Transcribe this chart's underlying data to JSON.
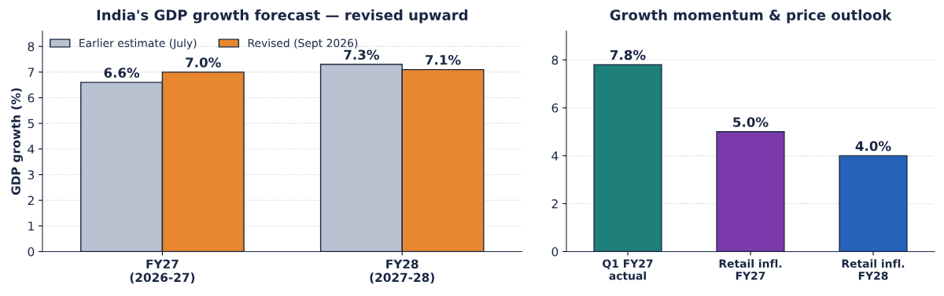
{
  "chart_data": [
    {
      "type": "bar",
      "title": "India's GDP growth forecast — revised upward",
      "ylabel": "GDP growth (%)",
      "categories": [
        "FY27\n(2026-27)",
        "FY28\n(2027-28)"
      ],
      "series": [
        {
          "name": "Earlier estimate (July)",
          "color": "#b8c2d0",
          "values": [
            6.6,
            7.3
          ],
          "value_labels": [
            "6.6%",
            "7.3%"
          ]
        },
        {
          "name": "Revised (Sept 2026)",
          "color": "#e8872e",
          "values": [
            7.0,
            7.1
          ],
          "value_labels": [
            "7.0%",
            "7.1%"
          ]
        }
      ],
      "ylim": [
        0,
        8.6
      ],
      "yticks": [
        0,
        1,
        2,
        3,
        4,
        5,
        6,
        7,
        8
      ],
      "grid": "y",
      "legend": "top left"
    },
    {
      "type": "bar",
      "title": "Growth momentum & price outlook",
      "categories": [
        "Q1 FY27\nactual",
        "Retail infl.\nFY27",
        "Retail infl.\nFY28"
      ],
      "values": [
        7.8,
        5.0,
        4.0
      ],
      "colors": [
        "#1f7f79",
        "#7b3aab",
        "#2563b8"
      ],
      "value_labels": [
        "7.8%",
        "5.0%",
        "4.0%"
      ],
      "ylim": [
        0,
        9.2
      ],
      "yticks": [
        0,
        2,
        4,
        6,
        8
      ],
      "grid": "y"
    }
  ]
}
